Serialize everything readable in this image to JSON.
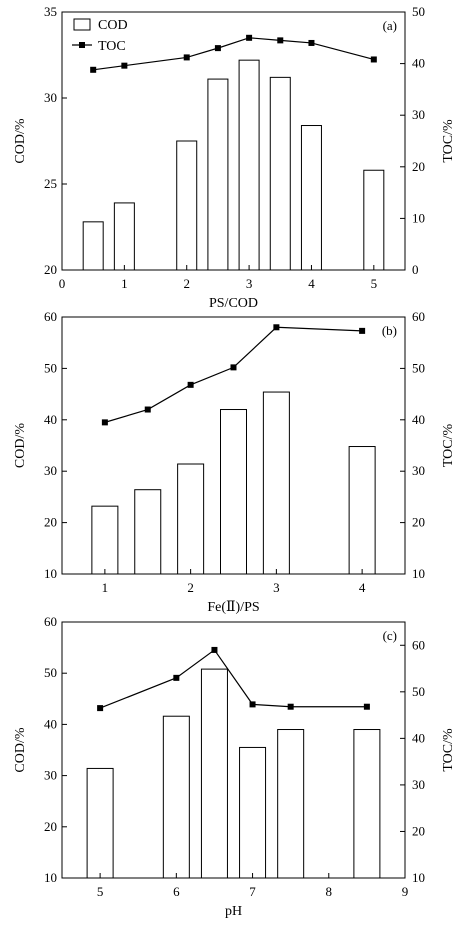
{
  "chart_data": [
    {
      "type": "bar",
      "panel_label": "(a)",
      "xlabel": "PS/COD",
      "ylabel": "COD/%",
      "ylabel2": "TOC/%",
      "xlim": [
        0,
        5.5
      ],
      "ylim": [
        20,
        35
      ],
      "ylim2": [
        0,
        50
      ],
      "xticks": [
        0,
        1,
        2,
        3,
        4,
        5
      ],
      "yticks": [
        20,
        25,
        30,
        35
      ],
      "yticks2": [
        0,
        10,
        20,
        30,
        40,
        50
      ],
      "legend": {
        "position": "top-left",
        "entries": [
          {
            "label": "COD",
            "marker": "open-bar"
          },
          {
            "label": "TOC",
            "marker": "square-line"
          }
        ]
      },
      "series": [
        {
          "name": "COD",
          "axis": "left",
          "kind": "bar",
          "x": [
            0.5,
            1,
            2,
            2.5,
            3,
            3.5,
            4,
            5
          ],
          "values": [
            22.8,
            23.9,
            27.5,
            31.1,
            32.2,
            31.2,
            28.4,
            25.8
          ]
        },
        {
          "name": "TOC",
          "axis": "right",
          "kind": "line",
          "x": [
            0.5,
            1,
            2,
            2.5,
            3,
            3.5,
            4,
            5
          ],
          "values": [
            38.8,
            39.6,
            41.2,
            43.0,
            45.0,
            44.5,
            44.0,
            40.8
          ]
        }
      ]
    },
    {
      "type": "bar",
      "panel_label": "(b)",
      "xlabel": "Fe(Ⅱ)/PS",
      "ylabel": "COD/%",
      "ylabel2": "TOC/%",
      "xlim": [
        0.5,
        4.5
      ],
      "ylim": [
        10,
        60
      ],
      "ylim2": [
        10,
        60
      ],
      "xticks": [
        1,
        2,
        3,
        4
      ],
      "yticks": [
        10,
        20,
        30,
        40,
        50,
        60
      ],
      "yticks2": [
        10,
        20,
        30,
        40,
        50,
        60
      ],
      "series": [
        {
          "name": "COD",
          "axis": "left",
          "kind": "bar",
          "x": [
            1,
            1.5,
            2,
            2.5,
            3,
            4
          ],
          "values": [
            23.2,
            26.4,
            31.4,
            42.0,
            45.4,
            34.8
          ]
        },
        {
          "name": "TOC",
          "axis": "right",
          "kind": "line",
          "x": [
            1,
            1.5,
            2,
            2.5,
            3,
            4
          ],
          "values": [
            39.5,
            42.0,
            46.8,
            50.2,
            58.0,
            57.3
          ]
        }
      ]
    },
    {
      "type": "bar",
      "panel_label": "(c)",
      "xlabel": "pH",
      "ylabel": "COD/%",
      "ylabel2": "TOC/%",
      "xlim": [
        4.5,
        9
      ],
      "ylim": [
        10,
        60
      ],
      "ylim2": [
        10,
        65
      ],
      "xticks": [
        5,
        6,
        7,
        8,
        9
      ],
      "yticks": [
        10,
        20,
        30,
        40,
        50,
        60
      ],
      "yticks2": [
        10,
        20,
        30,
        40,
        50,
        60
      ],
      "series": [
        {
          "name": "COD",
          "axis": "left",
          "kind": "bar",
          "x": [
            5,
            6,
            6.5,
            7,
            7.5,
            8.5
          ],
          "values": [
            31.4,
            41.6,
            50.8,
            35.5,
            39.0,
            39.0
          ]
        },
        {
          "name": "TOC",
          "axis": "right",
          "kind": "line",
          "x": [
            5,
            6,
            6.5,
            7,
            7.5,
            8.5
          ],
          "values": [
            46.5,
            53.0,
            59.0,
            47.3,
            46.8,
            46.8
          ]
        }
      ]
    }
  ]
}
